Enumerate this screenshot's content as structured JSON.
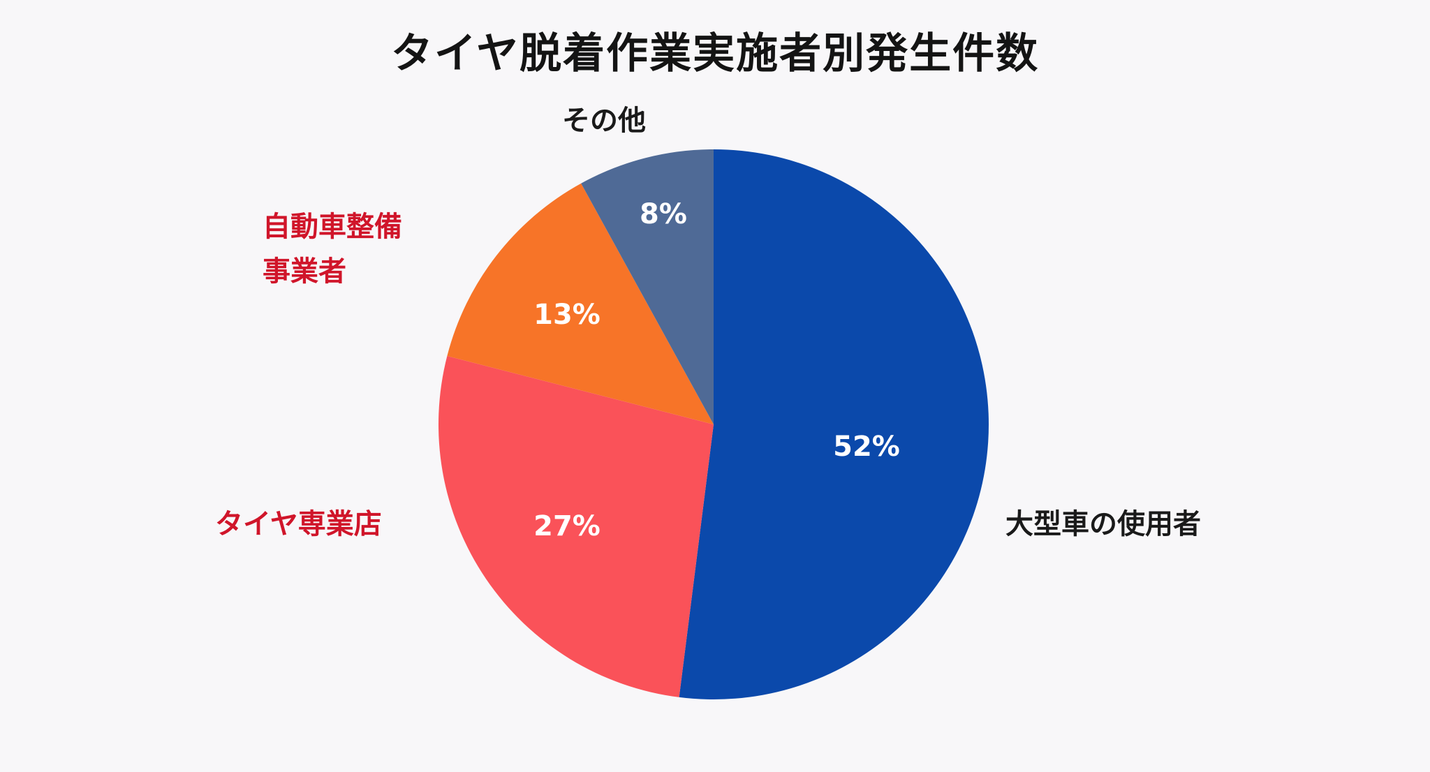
{
  "title": "タイヤ脱着作業実施者別発生件数",
  "chart_data": {
    "type": "pie",
    "title": "タイヤ脱着作業実施者別発生件数",
    "categories": [
      "大型車の使用者",
      "タイヤ専業店",
      "自動車整備事業者",
      "その他"
    ],
    "values": [
      52,
      27,
      13,
      8
    ],
    "unit": "%",
    "colors": [
      "#0B49AB",
      "#FA5259",
      "#F77428",
      "#4F6A96"
    ],
    "label_colors": [
      "#1A1A1A",
      "#D0152A",
      "#D0152A",
      "#1A1A1A"
    ],
    "start_angle": "top, clockwise",
    "legend": "none (direct labels)"
  },
  "labels": {
    "large_vehicle_users": "大型車の使用者",
    "tire_shops": "タイヤ専業店",
    "auto_maintenance_line1": "自動車整備",
    "auto_maintenance_line2": "事業者",
    "other": "その他"
  },
  "percents": {
    "large_vehicle_users": "52%",
    "tire_shops": "27%",
    "auto_maintenance": "13%",
    "other": "8%"
  }
}
